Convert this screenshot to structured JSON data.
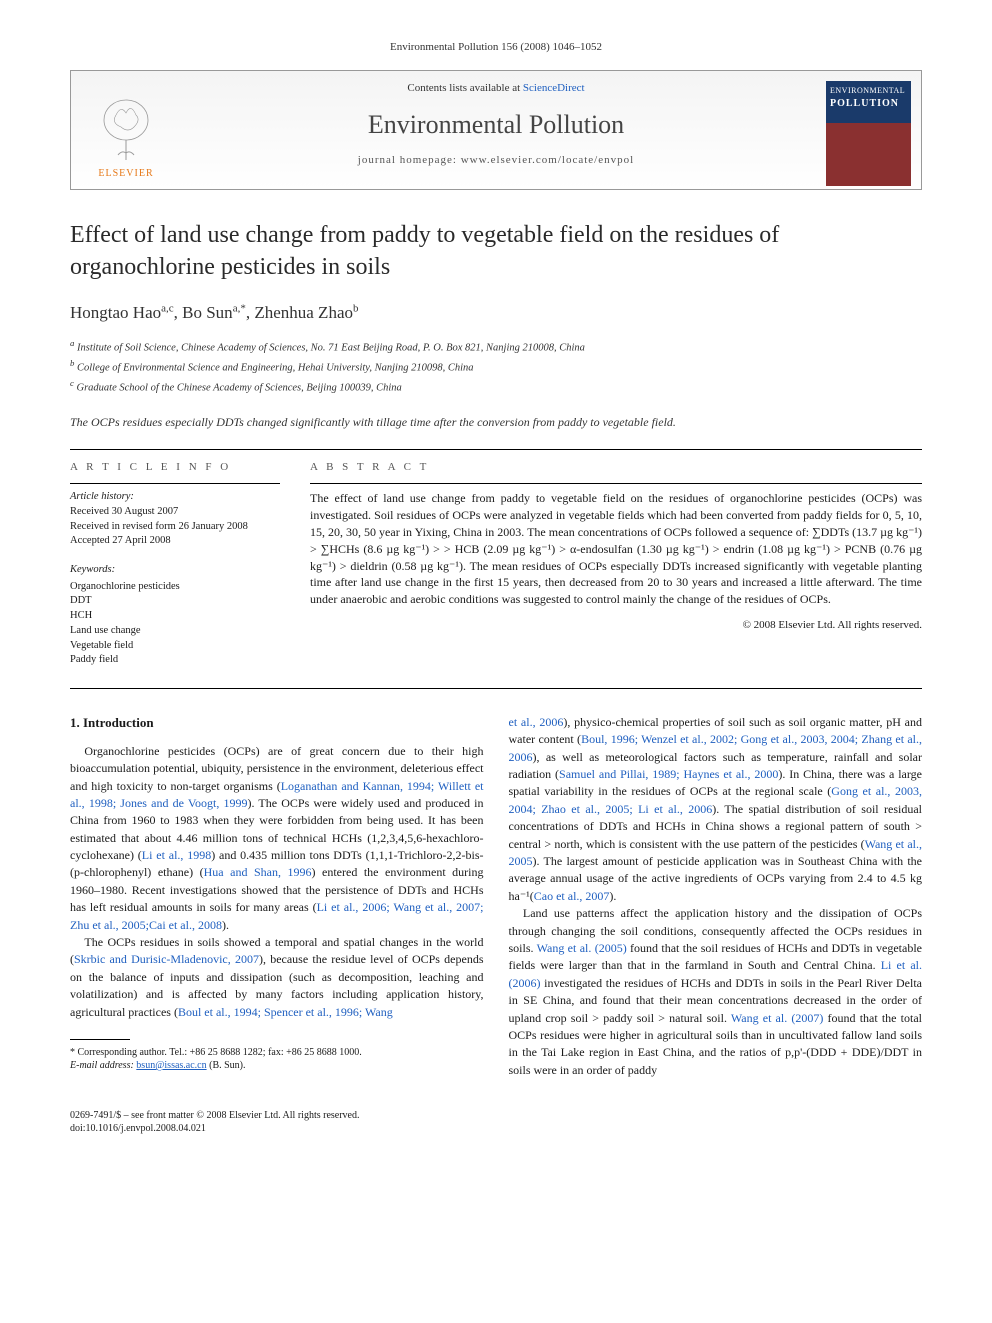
{
  "top_reference": "Environmental Pollution 156 (2008) 1046–1052",
  "masthead": {
    "contents_prefix": "Contents lists available at ",
    "contents_link": "ScienceDirect",
    "journal_name": "Environmental Pollution",
    "homepage_label": "journal homepage: www.elsevier.com/locate/envpol",
    "publisher": "ELSEVIER",
    "cover_line1": "ENVIRONMENTAL",
    "cover_line2": "POLLUTION"
  },
  "title": "Effect of land use change from paddy to vegetable field on the residues of organochlorine pesticides in soils",
  "authors_html": "Hongtao Hao|a,c|, Bo Sun|a,*|, Zhenhua Zhao|b|",
  "authors": [
    {
      "name": "Hongtao Hao",
      "sup": "a,c"
    },
    {
      "name": "Bo Sun",
      "sup": "a,*"
    },
    {
      "name": "Zhenhua Zhao",
      "sup": "b"
    }
  ],
  "affiliations": [
    {
      "sup": "a",
      "text": "Institute of Soil Science, Chinese Academy of Sciences, No. 71 East Beijing Road, P. O. Box 821, Nanjing 210008, China"
    },
    {
      "sup": "b",
      "text": "College of Environmental Science and Engineering, Hehai University, Nanjing 210098, China"
    },
    {
      "sup": "c",
      "text": "Graduate School of the Chinese Academy of Sciences, Beijing 100039, China"
    }
  ],
  "capsule": "The OCPs residues especially DDTs changed significantly with tillage time after the conversion from paddy to vegetable field.",
  "article_info": {
    "label": "A R T I C L E   I N F O",
    "history_label": "Article history:",
    "history": [
      "Received 30 August 2007",
      "Received in revised form 26 January 2008",
      "Accepted 27 April 2008"
    ],
    "keywords_label": "Keywords:",
    "keywords": [
      "Organochlorine pesticides",
      "DDT",
      "HCH",
      "Land use change",
      "Vegetable field",
      "Paddy field"
    ]
  },
  "abstract": {
    "label": "A B S T R A C T",
    "text": "The effect of land use change from paddy to vegetable field on the residues of organochlorine pesticides (OCPs) was investigated. Soil residues of OCPs were analyzed in vegetable fields which had been converted from paddy fields for 0, 5, 10, 15, 20, 30, 50 year in Yixing, China in 2003. The mean concentrations of OCPs followed a sequence of: ∑DDTs (13.7 µg kg⁻¹) > ∑HCHs (8.6 µg kg⁻¹) > > HCB (2.09 µg kg⁻¹) > α-endosulfan (1.30 µg kg⁻¹) > endrin (1.08 µg kg⁻¹) > PCNB (0.76 µg kg⁻¹) > dieldrin (0.58 µg kg⁻¹). The mean residues of OCPs especially DDTs increased significantly with vegetable planting time after land use change in the first 15 years, then decreased from 20 to 30 years and increased a little afterward. The time under anaerobic and aerobic conditions was suggested to control mainly the change of the residues of OCPs.",
    "copyright": "© 2008 Elsevier Ltd. All rights reserved."
  },
  "intro": {
    "heading": "1.  Introduction",
    "p1_a": "Organochlorine pesticides (OCPs) are of great concern due to their high bioaccumulation potential, ubiquity, persistence in the environment, deleterious effect and high toxicity to non-target organisms (",
    "p1_cite1": "Loganathan and Kannan, 1994; Willett et al., 1998; Jones and de Voogt, 1999",
    "p1_b": "). The OCPs were widely used and produced in China from 1960 to 1983 when they were forbidden from being used. It has been estimated that about 4.46 million tons of technical HCHs (1,2,3,4,5,6-hexachloro-cyclohexane) (",
    "p1_cite2": "Li et al., 1998",
    "p1_c": ") and 0.435 million tons DDTs (1,1,1-Trichloro-2,2-bis-(p-chlorophenyl) ethane) (",
    "p1_cite3": "Hua and Shan, 1996",
    "p1_d": ") entered the environment during 1960–1980. Recent investigations showed that the persistence of DDTs and HCHs has left residual amounts in soils for many areas (",
    "p1_cite4": "Li et al., 2006; Wang et al., 2007; Zhu et al., 2005;Cai et al., 2008",
    "p1_e": ").",
    "p2_a": "The OCPs residues in soils showed a temporal and spatial changes in the world (",
    "p2_cite1": "Skrbic and Durisic-Mladenovic, 2007",
    "p2_b": "), because the residue level of OCPs depends on the balance of inputs and dissipation (such as decomposition, leaching and volatilization) and is affected by many factors including application history, agricultural practices (",
    "p2_cite2": "Boul et al., 1994; Spencer et al., 1996; Wang"
  },
  "col2": {
    "cont_cite1": "et al., 2006",
    "cont_a": "), physico-chemical properties of soil such as soil organic matter, pH and water content (",
    "cont_cite2": "Boul, 1996; Wenzel et al., 2002; Gong et al., 2003, 2004; Zhang et al., 2006",
    "cont_b": "), as well as meteorological factors such as temperature, rainfall and solar radiation (",
    "cont_cite3": "Samuel and Pillai, 1989; Haynes et al., 2000",
    "cont_c": "). In China, there was a large spatial variability in the residues of OCPs at the regional scale (",
    "cont_cite4": "Gong et al., 2003, 2004; Zhao et al., 2005; Li et al., 2006",
    "cont_d": "). The spatial distribution of soil residual concentrations of DDTs and HCHs in China shows a regional pattern of south > central > north, which is consistent with the use pattern of the pesticides (",
    "cont_cite5": "Wang et al., 2005",
    "cont_e": "). The largest amount of pesticide application was in Southeast China with the average annual usage of the active ingredients of OCPs varying from 2.4 to 4.5 kg ha⁻¹(",
    "cont_cite6": "Cao et al., 2007",
    "cont_f": ").",
    "p2_a": "Land use patterns affect the application history and the dissipation of OCPs through changing the soil conditions, consequently affected the OCPs residues in soils. ",
    "p2_cite1": "Wang et al. (2005)",
    "p2_b": " found that the soil residues of HCHs and DDTs in vegetable fields were larger than that in the farmland in South and Central China. ",
    "p2_cite2": "Li et al. (2006)",
    "p2_c": " investigated the residues of HCHs and DDTs in soils in the Pearl River Delta in SE China, and found that their mean concentrations decreased in the order of upland crop soil > paddy soil > natural soil. ",
    "p2_cite3": "Wang et al. (2007)",
    "p2_d": " found that the total OCPs residues were higher in agricultural soils than in uncultivated fallow land soils in the Tai Lake region in East China, and the ratios of p,p'-(DDD + DDE)/DDT in soils were in an order of paddy"
  },
  "footnote": {
    "corr": "* Corresponding author. Tel.: +86 25 8688 1282; fax: +86 25 8688 1000.",
    "email_label": "E-mail address: ",
    "email": "bsun@issas.ac.cn",
    "email_who": " (B. Sun)."
  },
  "bottom": {
    "issn": "0269-7491/$ – see front matter © 2008 Elsevier Ltd. All rights reserved.",
    "doi": "doi:10.1016/j.envpol.2008.04.021"
  },
  "colors": {
    "link": "#2060c0",
    "elsevier_orange": "#e67817",
    "cover_top": "#1a3a6a",
    "cover_bottom": "#8a3030"
  }
}
